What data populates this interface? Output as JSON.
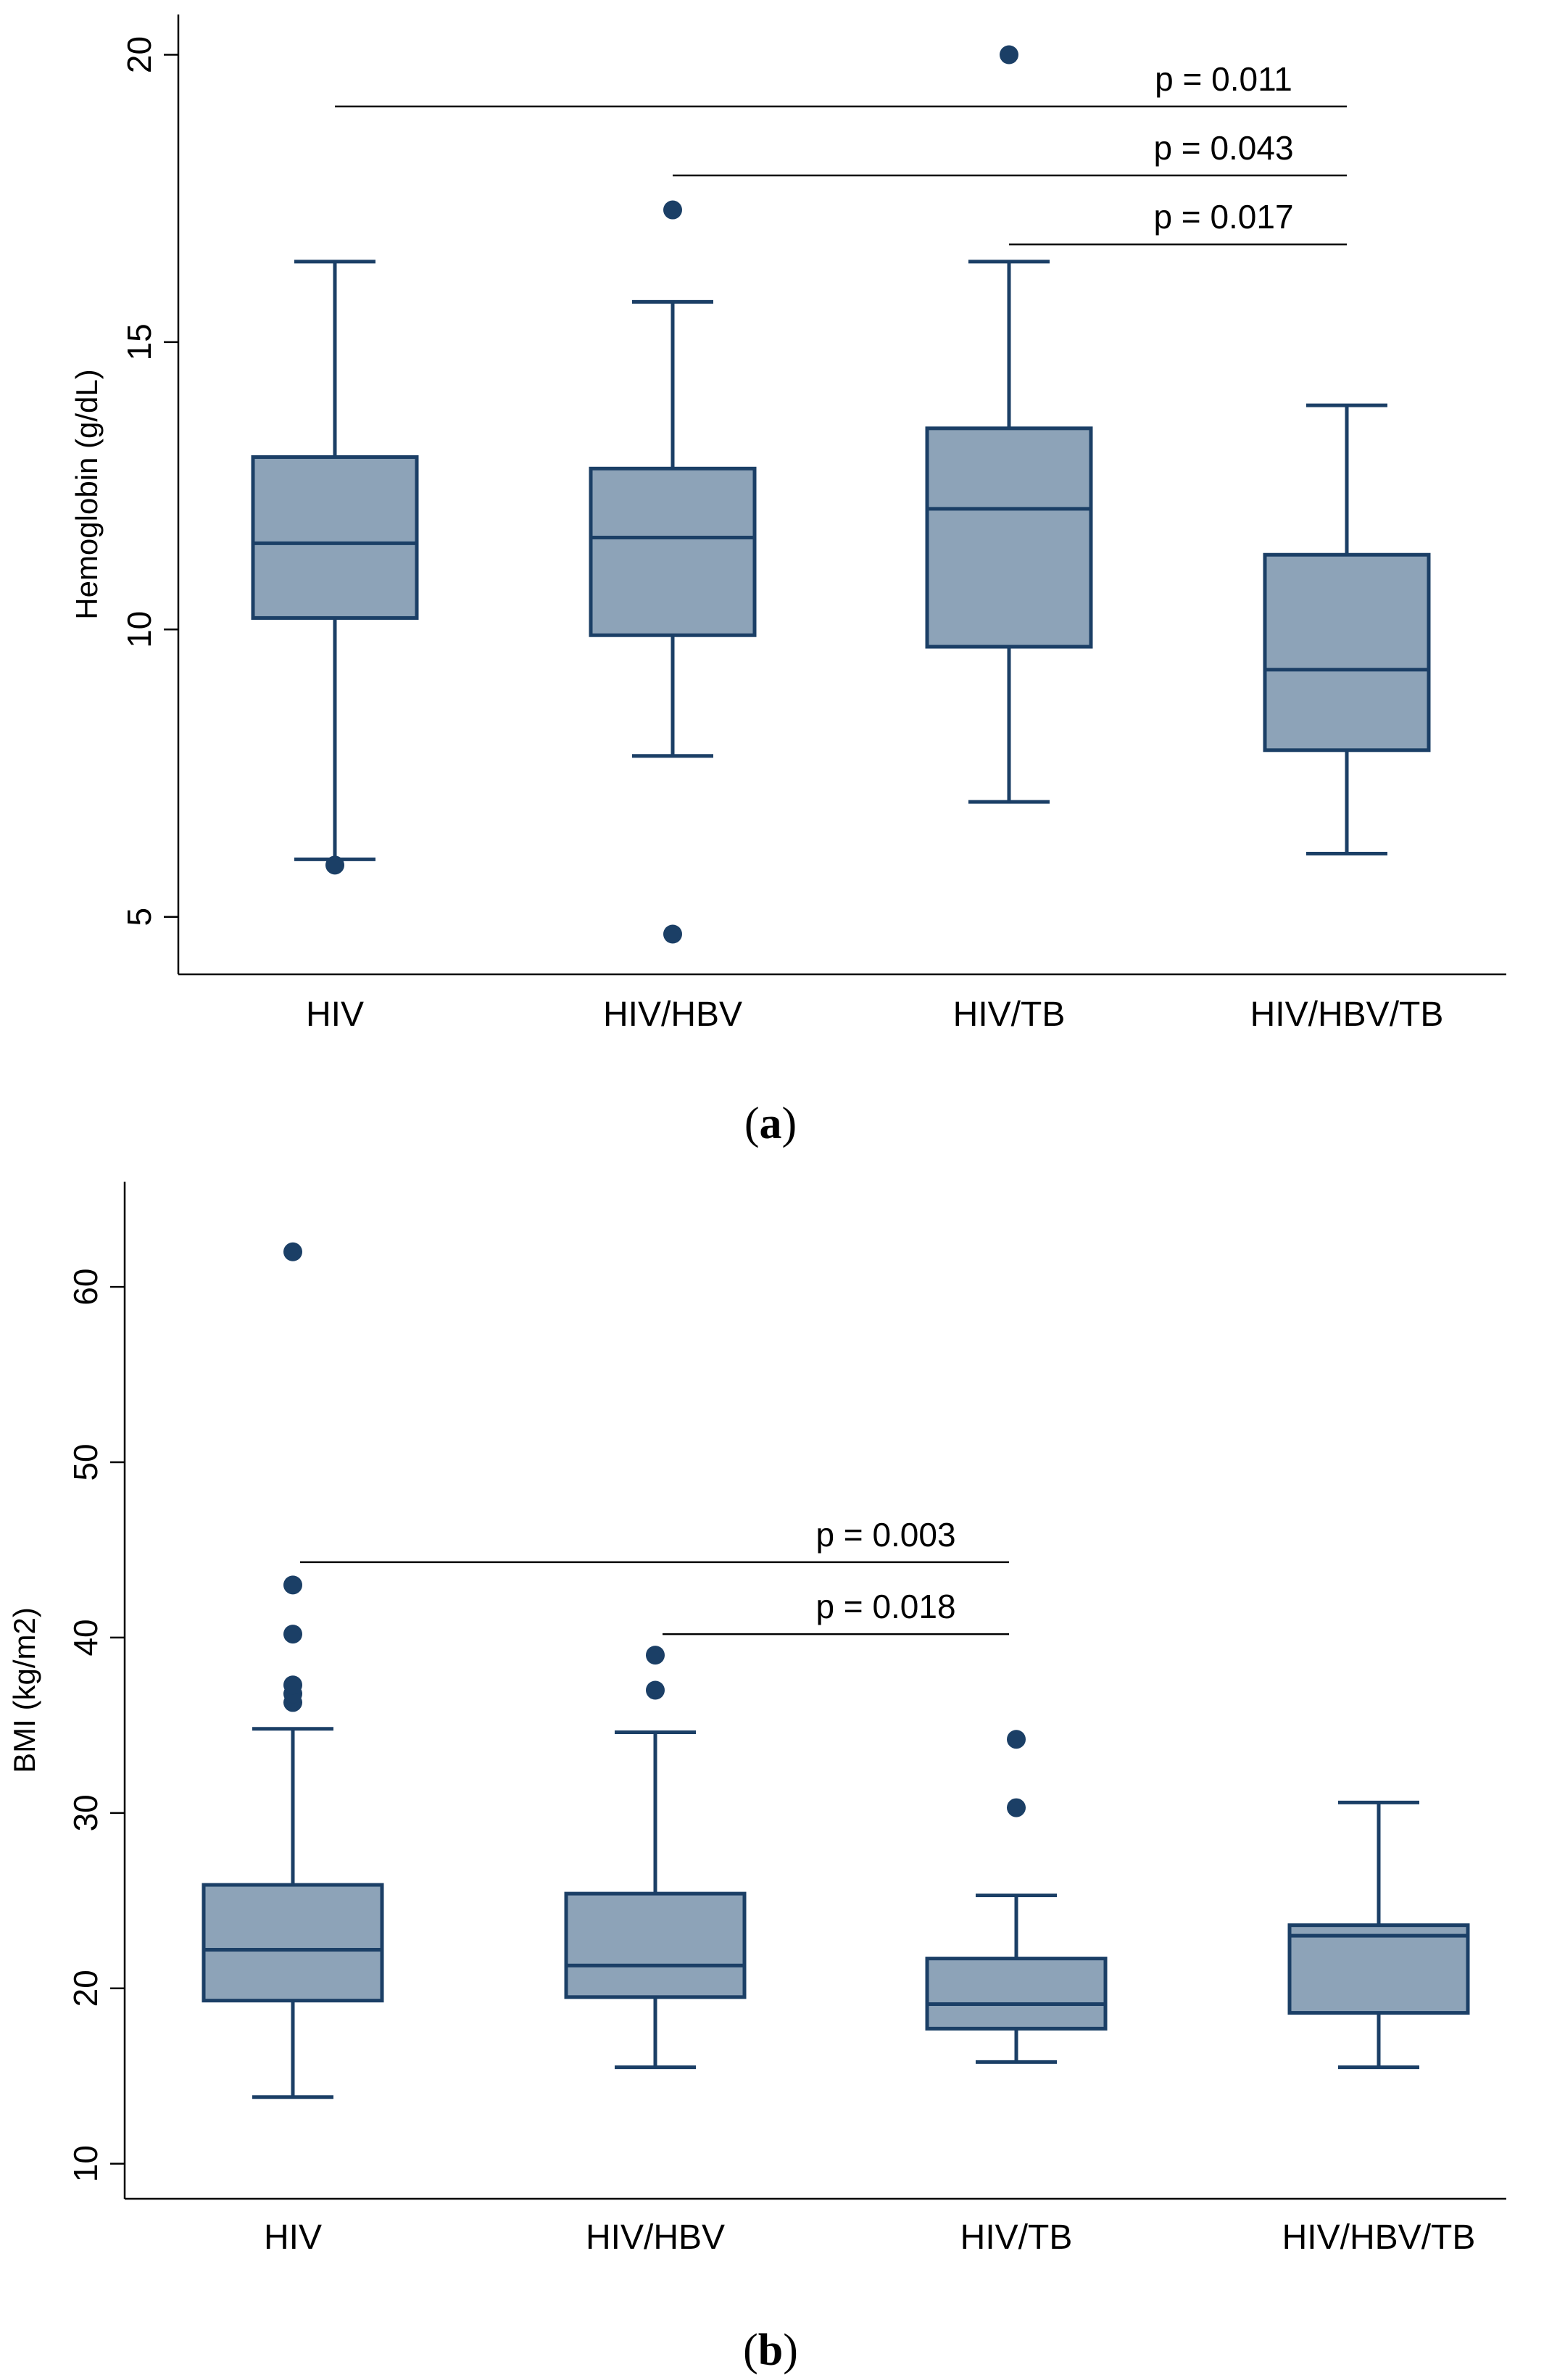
{
  "colors": {
    "box_fill": "#8da3b8",
    "box_line": "#1b3f66",
    "outlier": "#1b3f66"
  },
  "chart_data": [
    {
      "type": "box",
      "panel": "(a)",
      "panel_letter": "a",
      "ylabel": "Hemoglobin (g/dL)",
      "xlabel": "",
      "ylim": [
        4.0,
        20.7
      ],
      "yticks": [
        5,
        10,
        15,
        20
      ],
      "categories": [
        "HIV",
        "HIV/HBV",
        "HIV/TB",
        "HIV/HBV/TB"
      ],
      "boxes": [
        {
          "category": "HIV",
          "whisker_low": 6.0,
          "q1": 10.2,
          "median": 11.5,
          "q3": 13.0,
          "whisker_high": 16.4,
          "outliers": [
            5.9
          ]
        },
        {
          "category": "HIV/HBV",
          "whisker_low": 7.8,
          "q1": 9.9,
          "median": 11.6,
          "q3": 12.8,
          "whisker_high": 15.7,
          "outliers": [
            17.3,
            4.7
          ]
        },
        {
          "category": "HIV/TB",
          "whisker_low": 7.0,
          "q1": 9.7,
          "median": 12.1,
          "q3": 13.5,
          "whisker_high": 16.4,
          "outliers": [
            20.0
          ]
        },
        {
          "category": "HIV/HBV/TB",
          "whisker_low": 6.1,
          "q1": 7.9,
          "median": 9.3,
          "q3": 11.3,
          "whisker_high": 13.9,
          "outliers": []
        }
      ],
      "comparisons": [
        {
          "from": "HIV",
          "to": "HIV/HBV/TB",
          "label": "p = 0.011",
          "y": 19.1
        },
        {
          "from": "HIV/HBV",
          "to": "HIV/HBV/TB",
          "label": "p = 0.043",
          "y": 17.9
        },
        {
          "from": "HIV/TB",
          "to": "HIV/HBV/TB",
          "label": "p = 0.017",
          "y": 16.7
        }
      ]
    },
    {
      "type": "box",
      "panel": "(b)",
      "panel_letter": "b",
      "ylabel": "BMI (kg/m2)",
      "xlabel": "",
      "ylim": [
        8.0,
        66.0
      ],
      "yticks": [
        10,
        20,
        30,
        40,
        50,
        60
      ],
      "categories": [
        "HIV",
        "HIV/HBV",
        "HIV/TB",
        "HIV/HBV/TB"
      ],
      "boxes": [
        {
          "category": "HIV",
          "whisker_low": 13.8,
          "q1": 19.3,
          "median": 22.2,
          "q3": 25.9,
          "whisker_high": 34.8,
          "outliers": [
            36.3,
            36.8,
            37.3,
            40.2,
            43.0,
            62.0
          ]
        },
        {
          "category": "HIV/HBV",
          "whisker_low": 15.5,
          "q1": 19.5,
          "median": 21.3,
          "q3": 25.4,
          "whisker_high": 34.6,
          "outliers": [
            37.0,
            39.0
          ]
        },
        {
          "category": "HIV/TB",
          "whisker_low": 15.8,
          "q1": 17.7,
          "median": 19.1,
          "q3": 21.7,
          "whisker_high": 25.3,
          "outliers": [
            30.3,
            34.2
          ]
        },
        {
          "category": "HIV/HBV/TB",
          "whisker_low": 15.5,
          "q1": 18.6,
          "median": 23.0,
          "q3": 23.6,
          "whisker_high": 30.6,
          "outliers": []
        }
      ],
      "comparisons": [
        {
          "from": "HIV",
          "to": "HIV/TB",
          "label": "p = 0.003",
          "y": 44.3
        },
        {
          "from": "HIV/HBV",
          "to": "HIV/TB",
          "label": "p = 0.018",
          "y": 40.2
        }
      ]
    }
  ]
}
